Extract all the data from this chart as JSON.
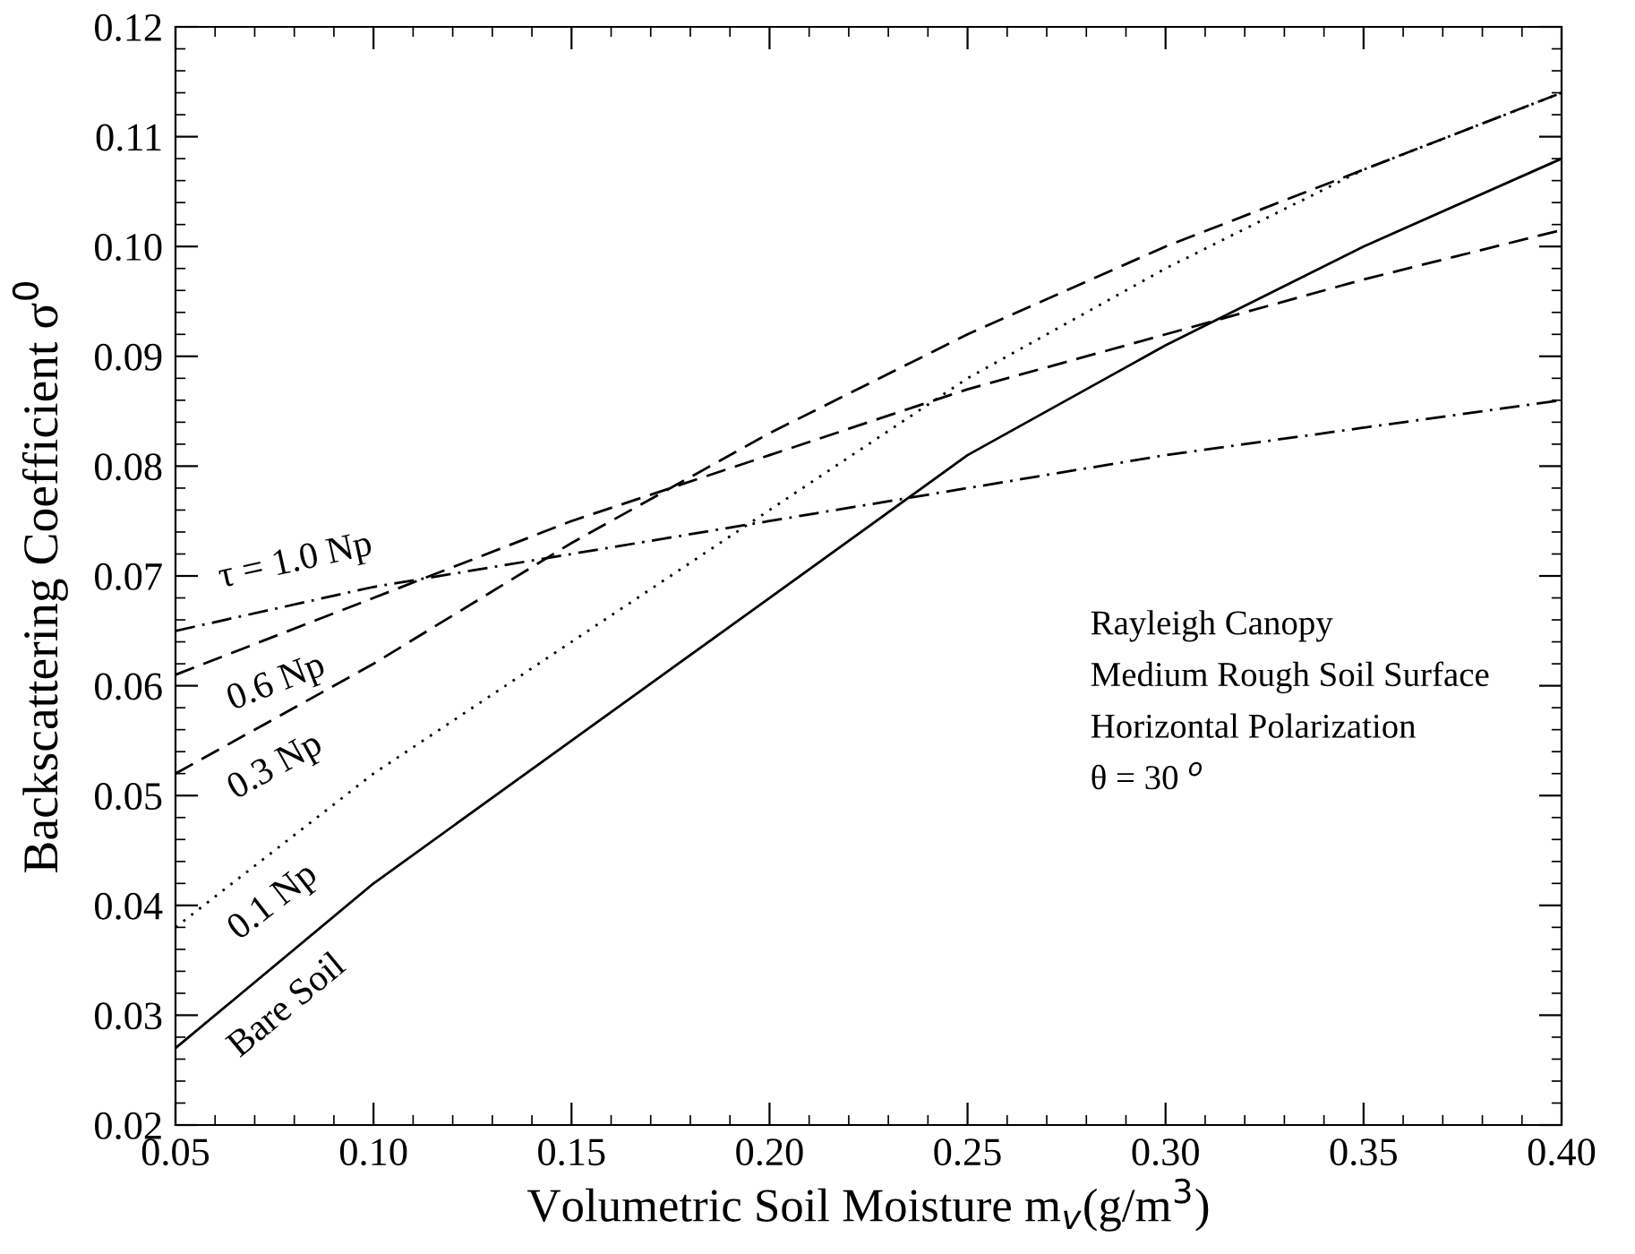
{
  "chart_data": {
    "type": "line",
    "xlabel": "Volumetric Soil Moisture m$_{v}$(g/m$^{3}$)",
    "ylabel": "Backscattering Coefficient σ$^{0}$",
    "x": [
      0.05,
      0.1,
      0.15,
      0.2,
      0.25,
      0.3,
      0.35,
      0.4
    ],
    "series": [
      {
        "name": "τ = 1.0 Np",
        "color": "#000000",
        "line_style": "dashdot",
        "values": [
          0.065,
          0.069,
          0.072,
          0.075,
          0.078,
          0.081,
          0.0835,
          0.086
        ]
      },
      {
        "name": "0.6 Np",
        "color": "#000000",
        "line_style": "dashed",
        "values": [
          0.061,
          0.068,
          0.075,
          0.081,
          0.087,
          0.092,
          0.097,
          0.1015
        ]
      },
      {
        "name": "0.3 Np",
        "color": "#000000",
        "line_style": "dashed",
        "values": [
          0.052,
          0.062,
          0.073,
          0.083,
          0.092,
          0.1,
          0.107,
          0.114
        ]
      },
      {
        "name": "0.1 Np",
        "color": "#000000",
        "line_style": "dotted",
        "values": [
          0.038,
          0.052,
          0.064,
          0.076,
          0.088,
          0.098,
          0.107,
          0.114
        ]
      },
      {
        "name": "Bare Soil",
        "color": "#000000",
        "line_style": "solid",
        "values": [
          0.027,
          0.042,
          0.055,
          0.068,
          0.081,
          0.091,
          0.1,
          0.108
        ]
      }
    ],
    "xlim": [
      0.05,
      0.4
    ],
    "xticks": [
      {
        "value": 0.05,
        "label": "0.05"
      },
      {
        "value": 0.1,
        "label": "0.10"
      },
      {
        "value": 0.15,
        "label": "0.15"
      },
      {
        "value": 0.2,
        "label": "0.20"
      },
      {
        "value": 0.25,
        "label": "0.25"
      },
      {
        "value": 0.3,
        "label": "0.30"
      },
      {
        "value": 0.35,
        "label": "0.35"
      },
      {
        "value": 0.4,
        "label": "0.40"
      }
    ],
    "ylim": [
      0.02,
      0.12
    ],
    "yticks": [
      {
        "value": 0.02,
        "label": "0.02"
      },
      {
        "value": 0.03,
        "label": "0.03"
      },
      {
        "value": 0.04,
        "label": "0.04"
      },
      {
        "value": 0.05,
        "label": "0.05"
      },
      {
        "value": 0.06,
        "label": "0.06"
      },
      {
        "value": 0.07,
        "label": "0.07"
      },
      {
        "value": 0.08,
        "label": "0.08"
      },
      {
        "value": 0.09,
        "label": "0.09"
      },
      {
        "value": 0.1,
        "label": "0.10"
      },
      {
        "value": 0.11,
        "label": "0.11"
      },
      {
        "value": 0.12,
        "label": "0.12"
      }
    ],
    "annotations": [
      "Rayleigh Canopy",
      "Medium Rough Soil Surface",
      "Horizontal Polarization",
      "θ = 30 $^{o}$"
    ],
    "grid": false,
    "legend": false
  }
}
